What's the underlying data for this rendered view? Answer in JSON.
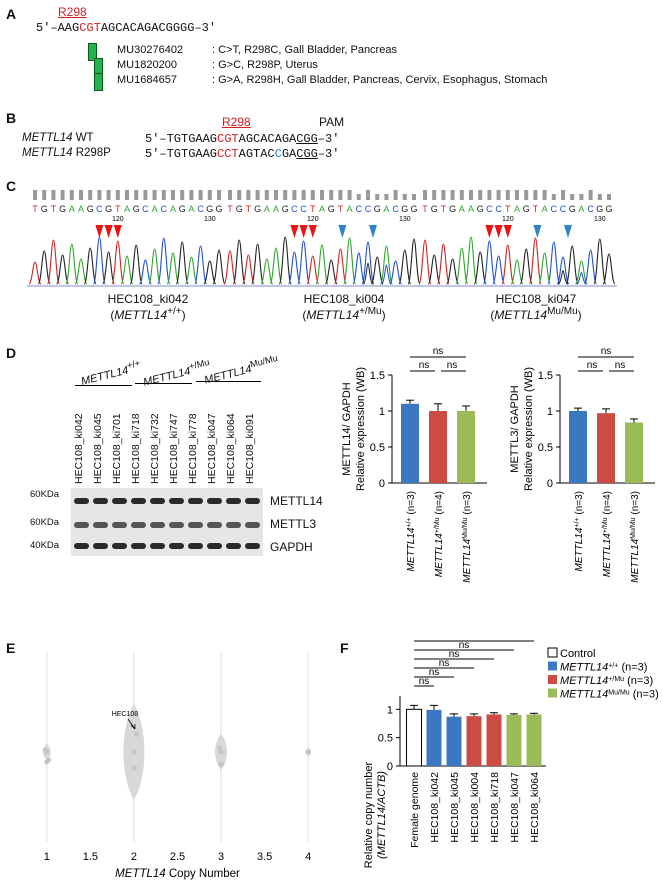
{
  "colors": {
    "red": "#d21f1f",
    "blue": "#3a78c2",
    "redbar": "#cc4c44",
    "green": "#9bbb59",
    "seq_blue": "#2f84c9"
  },
  "panelA": {
    "label": "A",
    "site": "R298",
    "seq_pre": "5′–AAG",
    "seq_codon": "CGT",
    "seq_post": "AGCACAGACGGGG–3′",
    "mutations": [
      {
        "id": "MU30276402",
        "desc": ": C>T, R298C, Gall Bladder, Pancreas"
      },
      {
        "id": "MU1820200",
        "desc": ": G>C, R298P, Uterus"
      },
      {
        "id": "MU1684657",
        "desc": ": G>A, R298H, Gall Bladder, Pancreas, Cervix, Esophagus, Stomach"
      }
    ]
  },
  "panelB": {
    "label": "B",
    "site": "R298",
    "pam": "PAM",
    "rows": [
      {
        "gene": "METTL14",
        "name": " WT",
        "pre": "5′–TGTGAAG",
        "codon": "CGT",
        "mid": "AGCACAGA",
        "c1": "",
        "c2": "",
        "pam": "CGG",
        "post": "–3′"
      },
      {
        "gene": "METTL14",
        "name": " R298P",
        "pre": "5′–TGTGAAG",
        "codon": "CCT",
        "mid": "AGTAC",
        "c1": "C",
        "c2": "GA",
        "pam": "CGG",
        "post": "–3′"
      }
    ]
  },
  "panelC": {
    "label": "C",
    "traces": [
      {
        "seq": "TGTGAAGCGTAGCACAGACGG",
        "ticks": [
          "120",
          "130"
        ],
        "name": "HEC108_ki042",
        "geno_pre": "(",
        "gene": "METTL14",
        "sup": "+/+",
        "geno_post": ")"
      },
      {
        "seq": "TGTGAAGCCTAGTACCGACGG",
        "ticks": [
          "120",
          "130"
        ],
        "name": "HEC108_ki004",
        "geno_pre": "(",
        "gene": "METTL14",
        "sup": "+/Mu",
        "geno_post": ")"
      },
      {
        "seq": "TGTGAAGCCTAGTACCGACGG",
        "ticks": [
          "120",
          "130"
        ],
        "name": "HEC108_ki047",
        "geno_pre": "(",
        "gene": "METTL14",
        "sup": "Mu/Mu",
        "geno_post": ")"
      }
    ]
  },
  "panelD": {
    "label": "D",
    "groups": [
      {
        "gene": "METTL14",
        "sup": "+/+"
      },
      {
        "gene": "METTL14",
        "sup": "+/Mu"
      },
      {
        "gene": "METTL14",
        "sup": "Mu/Mu"
      }
    ],
    "lanes": [
      "HEC108_ki042",
      "HEC108_ki045",
      "HEC108_ki701",
      "HEC108_ki718",
      "HEC108_ki732",
      "HEC108_ki747",
      "HEC108_ki778",
      "HEC108_ki047",
      "HEC108_ki064",
      "HEC108_ki091"
    ],
    "markers": [
      "60KDa",
      "60KDa",
      "40KDa"
    ],
    "proteins": [
      "METTL14",
      "METTL3",
      "GAPDH"
    ]
  },
  "chart_data": [
    {
      "type": "bar",
      "panel": "D-left",
      "ylabel": [
        "METTL14/ GAPDH",
        "Relative expression (WB)"
      ],
      "ylim": [
        0,
        1.5
      ],
      "yticks": [
        "0",
        "0.5",
        "1",
        "1.5"
      ],
      "categories": [
        {
          "gene": "METTL14",
          "sup": "+/+",
          "n": " (n=3)"
        },
        {
          "gene": "METTL14",
          "sup": "+/Mu",
          "n": " (n=4)"
        },
        {
          "gene": "METTL14",
          "sup": "Mu/Mu",
          "n": " (n=3)"
        }
      ],
      "values": [
        1.1,
        1.0,
        1.0
      ],
      "errors": [
        0.05,
        0.1,
        0.07
      ],
      "significance": [
        {
          "from": 0,
          "to": 2,
          "label": "ns"
        },
        {
          "from": 0,
          "to": 1,
          "label": "ns"
        },
        {
          "from": 1,
          "to": 2,
          "label": "ns"
        }
      ]
    },
    {
      "type": "bar",
      "panel": "D-right",
      "ylabel": [
        "METTL3/ GAPDH",
        "Relative expression (WB)"
      ],
      "ylim": [
        0,
        1.5
      ],
      "yticks": [
        "0",
        "0.5",
        "1",
        "1.5"
      ],
      "categories": [
        {
          "gene": "METTL14",
          "sup": "+/+",
          "n": " (n=3)"
        },
        {
          "gene": "METTL14",
          "sup": "+/Mu",
          "n": " (n=4)"
        },
        {
          "gene": "METTL14",
          "sup": "Mu/Mu",
          "n": " (n=3)"
        }
      ],
      "values": [
        1.0,
        0.97,
        0.84
      ],
      "errors": [
        0.04,
        0.06,
        0.05
      ],
      "significance": [
        {
          "from": 0,
          "to": 2,
          "label": "ns"
        },
        {
          "from": 0,
          "to": 1,
          "label": "ns"
        },
        {
          "from": 1,
          "to": 2,
          "label": "ns"
        }
      ]
    },
    {
      "type": "scatter",
      "panel": "E",
      "xlabel_gene": "METTL14",
      "xlabel": " Copy Number",
      "xlim": [
        0.75,
        4.25
      ],
      "xticks": [
        "1",
        "1.5",
        "2",
        "2.5",
        "3",
        "3.5",
        "4"
      ],
      "annotation": "HEC108",
      "points": [
        {
          "x": 1,
          "y": 0
        },
        {
          "x": 0.98,
          "y": 0.05
        },
        {
          "x": 1.0,
          "y": -0.25
        },
        {
          "x": 1.02,
          "y": -0.2
        },
        {
          "x": 2,
          "y": 0
        },
        {
          "x": 2.03,
          "y": 0.45
        },
        {
          "x": 2.0,
          "y": -0.4
        },
        {
          "x": 3,
          "y": 0
        },
        {
          "x": 3.0,
          "y": -0.3
        },
        {
          "x": 2.98,
          "y": 0.1
        },
        {
          "x": 4,
          "y": 0
        }
      ]
    },
    {
      "type": "bar",
      "panel": "F",
      "ylabel": [
        "Relative copy number",
        "(METTL14/ACTB)"
      ],
      "ylim": [
        0,
        1.2
      ],
      "yticks": [
        "0",
        "0.5",
        "1"
      ],
      "categories": [
        "Female genome",
        "HEC108_ki042",
        "HEC108_ki045",
        "HEC108_ki004",
        "HEC108_ki718",
        "HEC108_ki047",
        "HEC108_ki064"
      ],
      "values": [
        1.0,
        0.99,
        0.87,
        0.88,
        0.91,
        0.9,
        0.91
      ],
      "errors": [
        0.07,
        0.08,
        0.05,
        0.04,
        0.03,
        0.02,
        0.02
      ],
      "groups": [
        0,
        1,
        1,
        2,
        2,
        3,
        3
      ],
      "significance": [
        "ns",
        "ns",
        "ns",
        "ns",
        "ns",
        "ns"
      ],
      "legend": [
        {
          "label": "Control",
          "gene": "",
          "sup": "",
          "n": ""
        },
        {
          "label": "",
          "gene": "METTL14",
          "sup": "+/+",
          "n": " (n=3)"
        },
        {
          "label": "",
          "gene": "METTL14",
          "sup": "+/Mu",
          "n": " (n=3)"
        },
        {
          "label": "",
          "gene": "METTL14",
          "sup": "Mu/Mu",
          "n": " (n=3)"
        }
      ]
    }
  ]
}
